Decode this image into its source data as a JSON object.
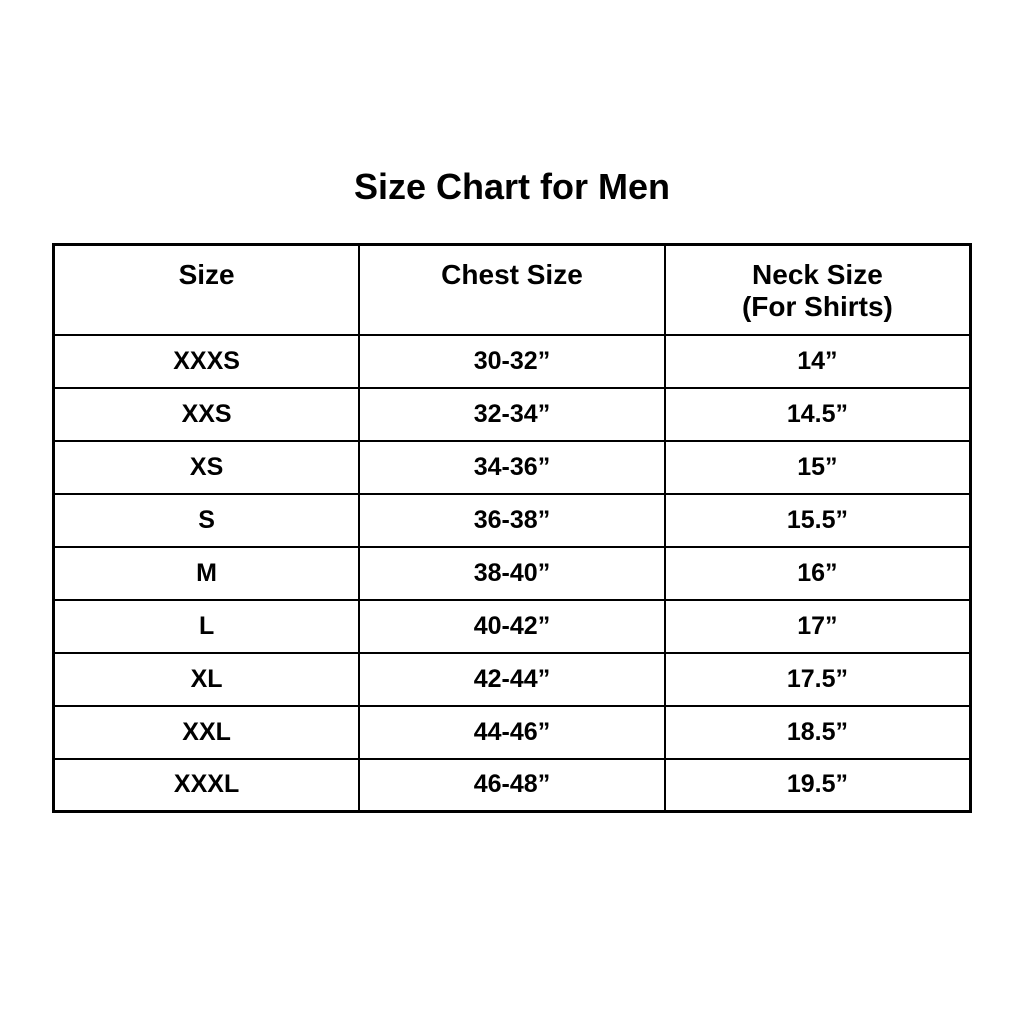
{
  "page": {
    "title": "Size Chart for Men",
    "background_color": "#ffffff",
    "text_color": "#000000",
    "border_color": "#000000"
  },
  "table": {
    "headers": {
      "size": "Size",
      "chest": "Chest Size",
      "neck_line1": "Neck Size",
      "neck_line2": "(For Shirts)"
    },
    "rows": [
      {
        "size": "XXXS",
        "chest": "30-32”",
        "neck": "14”"
      },
      {
        "size": "XXS",
        "chest": "32-34”",
        "neck": "14.5”"
      },
      {
        "size": "XS",
        "chest": "34-36”",
        "neck": "15”"
      },
      {
        "size": "S",
        "chest": "36-38”",
        "neck": "15.5”"
      },
      {
        "size": "M",
        "chest": "38-40”",
        "neck": "16”"
      },
      {
        "size": "L",
        "chest": "40-42”",
        "neck": "17”"
      },
      {
        "size": "XL",
        "chest": "42-44”",
        "neck": "17.5”"
      },
      {
        "size": "XXL",
        "chest": "44-46”",
        "neck": "18.5”"
      },
      {
        "size": "XXXL",
        "chest": "46-48”",
        "neck": "19.5”"
      }
    ]
  }
}
